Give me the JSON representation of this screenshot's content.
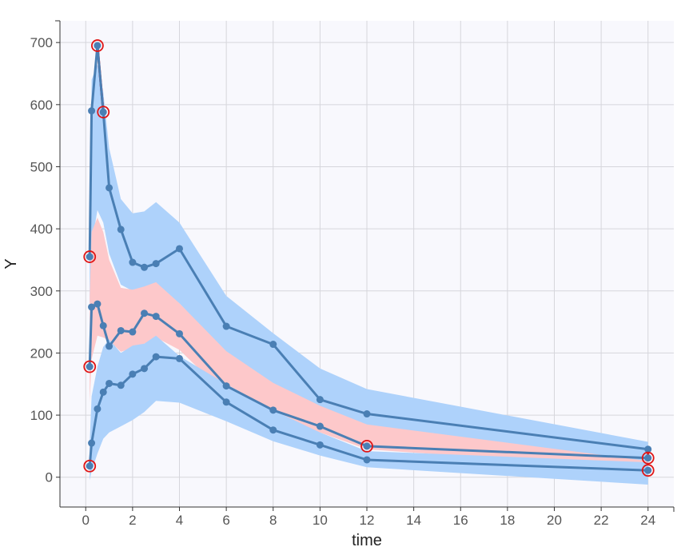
{
  "chart_data": {
    "type": "line",
    "title": "",
    "xlabel": "time",
    "ylabel": "Y",
    "xlim": [
      -1.1,
      25.1
    ],
    "ylim": [
      -48,
      735
    ],
    "xticks": [
      0,
      2,
      4,
      6,
      8,
      10,
      12,
      14,
      16,
      18,
      20,
      22,
      24
    ],
    "yticks": [
      0,
      100,
      200,
      300,
      400,
      500,
      600,
      700
    ],
    "grid": true,
    "colors": {
      "plot_bg": "#f8f8fd",
      "grid": "#d6d6dc",
      "line": "#4a7fb4",
      "outer_band": "#aed2fb",
      "median_band": "#fdc8ca",
      "outlier": "#e01515",
      "axis": "#333333"
    },
    "bands": [
      {
        "name": "upper-percentile-interval",
        "color": "outer_band",
        "x": [
          0.17,
          0.25,
          0.5,
          0.75,
          1,
          1.5,
          2,
          2.5,
          3,
          4,
          6,
          8,
          10,
          12,
          24
        ],
        "low": [
          275,
          375,
          430,
          410,
          360,
          310,
          300,
          300,
          305,
          280,
          200,
          148,
          108,
          72,
          23
        ],
        "high": [
          355,
          640,
          665,
          620,
          530,
          448,
          425,
          428,
          443,
          410,
          292,
          232,
          175,
          142,
          57
        ]
      },
      {
        "name": "median-interval",
        "color": "median_band",
        "x": [
          0.17,
          0.25,
          0.5,
          0.75,
          1,
          1.5,
          2,
          2.5,
          3,
          4,
          6,
          8,
          10,
          12,
          24
        ],
        "low": [
          120,
          190,
          228,
          225,
          220,
          202,
          208,
          215,
          225,
          205,
          132,
          95,
          72,
          45,
          13
        ],
        "high": [
          290,
          395,
          418,
          395,
          350,
          305,
          302,
          307,
          314,
          280,
          203,
          152,
          115,
          85,
          26
        ]
      },
      {
        "name": "lower-percentile-interval",
        "color": "outer_band",
        "x": [
          0.17,
          0.25,
          0.5,
          0.75,
          1,
          1.5,
          2,
          2.5,
          3,
          4,
          6,
          8,
          10,
          12,
          24
        ],
        "low": [
          -5,
          10,
          38,
          62,
          72,
          82,
          92,
          105,
          123,
          120,
          90,
          58,
          35,
          16,
          -12
        ],
        "high": [
          55,
          130,
          178,
          210,
          222,
          200,
          212,
          215,
          228,
          195,
          150,
          108,
          72,
          42,
          24
        ]
      }
    ],
    "series": [
      {
        "name": "upper-percentile",
        "x": [
          0.17,
          0.25,
          0.5,
          0.75,
          1,
          1.5,
          2,
          2.5,
          3,
          4,
          6,
          8,
          10,
          12,
          24
        ],
        "y": [
          355,
          590,
          695,
          588,
          466,
          399,
          346,
          338,
          344,
          368,
          243,
          214,
          125,
          102,
          45
        ]
      },
      {
        "name": "median",
        "x": [
          0.17,
          0.25,
          0.5,
          0.75,
          1,
          1.5,
          2,
          2.5,
          3,
          4,
          6,
          8,
          10,
          12,
          24
        ],
        "y": [
          178,
          274,
          279,
          244,
          211,
          236,
          234,
          264,
          259,
          231,
          147,
          108,
          82,
          50,
          31
        ]
      },
      {
        "name": "lower-percentile",
        "x": [
          0.17,
          0.25,
          0.5,
          0.75,
          1,
          1.5,
          2,
          2.5,
          3,
          4,
          6,
          8,
          10,
          12,
          24
        ],
        "y": [
          18,
          55,
          110,
          137,
          151,
          148,
          166,
          175,
          194,
          191,
          121,
          76,
          52,
          28,
          11
        ]
      }
    ],
    "outliers": [
      {
        "x": 0.17,
        "y": 355
      },
      {
        "x": 0.5,
        "y": 695
      },
      {
        "x": 0.75,
        "y": 588
      },
      {
        "x": 0.17,
        "y": 178
      },
      {
        "x": 0.17,
        "y": 18
      },
      {
        "x": 12,
        "y": 50
      },
      {
        "x": 24,
        "y": 31
      },
      {
        "x": 24,
        "y": 11
      }
    ],
    "outlier_segments": [
      {
        "x": [
          0.5,
          0.75
        ],
        "y": [
          695,
          588
        ]
      },
      {
        "x": [
          24,
          24
        ],
        "y": [
          45,
          31
        ]
      },
      {
        "x": [
          24,
          24
        ],
        "y": [
          8,
          11
        ]
      }
    ]
  }
}
